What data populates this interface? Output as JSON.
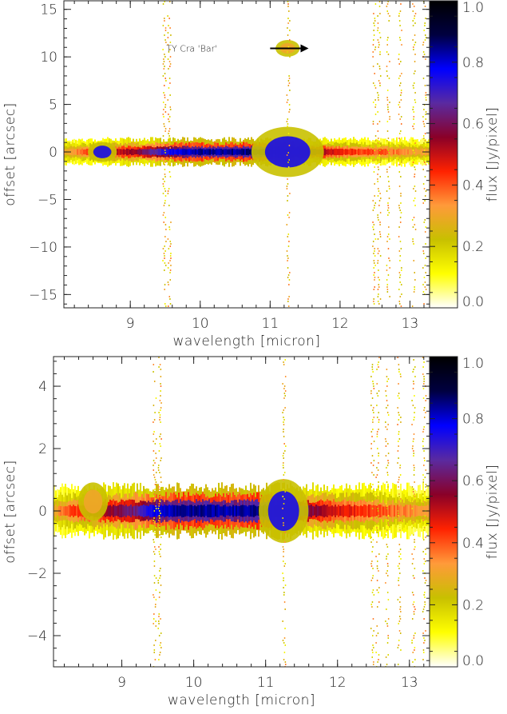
{
  "colorbar": {
    "label": "flux [Jy/pixel]",
    "ticks": [
      "0.0",
      "0.2",
      "0.4",
      "0.6",
      "0.8",
      "1.0"
    ],
    "tick_values": [
      0.0,
      0.2,
      0.4,
      0.6,
      0.8,
      1.0
    ],
    "range": [
      0.0,
      1.0
    ],
    "colormap": [
      "#ffffff",
      "#ffff00",
      "#c8c000",
      "#ff9a3a",
      "#ff2200",
      "#8a0028",
      "#5a2aa0",
      "#0000ff",
      "#000040",
      "#000000"
    ]
  },
  "chart_data": [
    {
      "type": "heatmap",
      "xlabel": "wavelength [micron]",
      "ylabel": "offset [arcsec]",
      "xlim": [
        8.05,
        13.28
      ],
      "ylim": [
        -16.4,
        15.9
      ],
      "x_ticks": [
        9,
        10,
        11,
        12,
        13
      ],
      "x_tick_labels": [
        "9",
        "10",
        "11",
        "12",
        "13"
      ],
      "y_ticks": [
        -15,
        -10,
        -5,
        0,
        5,
        10,
        15
      ],
      "y_tick_labels": [
        "−15",
        "−10",
        "−5",
        "0",
        "5",
        "10",
        "15"
      ],
      "annotation": {
        "text": "TY Cra 'Bar'",
        "arrow_from": [
          11.0,
          10.9
        ],
        "arrow_to": [
          11.55,
          10.9
        ],
        "text_x": 9.88,
        "text_y": 10.9
      },
      "features": {
        "spine_halfwidth": 0.55,
        "core_flux": [
          {
            "x": 8.1,
            "flux": 0.32
          },
          {
            "x": 8.6,
            "flux": 0.45
          },
          {
            "x": 9.2,
            "flux": 0.6
          },
          {
            "x": 9.5,
            "flux": 0.75
          },
          {
            "x": 10.0,
            "flux": 0.84
          },
          {
            "x": 10.5,
            "flux": 0.84
          },
          {
            "x": 11.0,
            "flux": 0.86
          },
          {
            "x": 11.25,
            "flux": 0.88
          },
          {
            "x": 11.5,
            "flux": 0.6
          },
          {
            "x": 12.0,
            "flux": 0.45
          },
          {
            "x": 12.5,
            "flux": 0.4
          },
          {
            "x": 13.25,
            "flux": 0.3
          }
        ],
        "column_streaks": [
          9.48,
          9.55,
          11.25,
          12.48,
          12.55,
          12.68,
          12.85,
          13.05,
          13.2
        ],
        "knots": [
          {
            "x": 8.6,
            "y": 0.0,
            "size": 1.2
          },
          {
            "x": 11.25,
            "y": 0.0,
            "size": 3.0
          },
          {
            "x": 11.25,
            "y": 10.9,
            "size": 1.0
          }
        ]
      }
    },
    {
      "type": "heatmap",
      "xlabel": "wavelength [micron]",
      "ylabel": "offset [arcsec]",
      "xlim": [
        8.05,
        13.28
      ],
      "ylim": [
        -5.0,
        4.95
      ],
      "x_ticks": [
        9,
        10,
        11,
        12,
        13
      ],
      "x_tick_labels": [
        "9",
        "10",
        "11",
        "12",
        "13"
      ],
      "y_ticks": [
        -4,
        -2,
        0,
        2,
        4
      ],
      "y_tick_labels": [
        "−4",
        "−2",
        "0",
        "2",
        "4"
      ],
      "features": {
        "spine_halfwidth": 0.32,
        "core_flux": [
          {
            "x": 8.1,
            "flux": 0.35
          },
          {
            "x": 8.6,
            "flux": 0.5
          },
          {
            "x": 9.2,
            "flux": 0.65
          },
          {
            "x": 9.5,
            "flux": 0.8
          },
          {
            "x": 10.0,
            "flux": 0.85
          },
          {
            "x": 10.5,
            "flux": 0.82
          },
          {
            "x": 11.0,
            "flux": 0.86
          },
          {
            "x": 11.25,
            "flux": 0.9
          },
          {
            "x": 11.5,
            "flux": 0.62
          },
          {
            "x": 12.0,
            "flux": 0.48
          },
          {
            "x": 12.5,
            "flux": 0.42
          },
          {
            "x": 13.25,
            "flux": 0.3
          }
        ],
        "column_streaks": [
          9.45,
          9.52,
          11.25,
          12.48,
          12.55,
          12.68,
          12.85,
          13.05,
          13.2
        ],
        "knots": [
          {
            "x": 8.6,
            "y": 0.3,
            "size": 1.2
          },
          {
            "x": 11.25,
            "y": 0.0,
            "size": 2.0
          }
        ]
      }
    }
  ]
}
